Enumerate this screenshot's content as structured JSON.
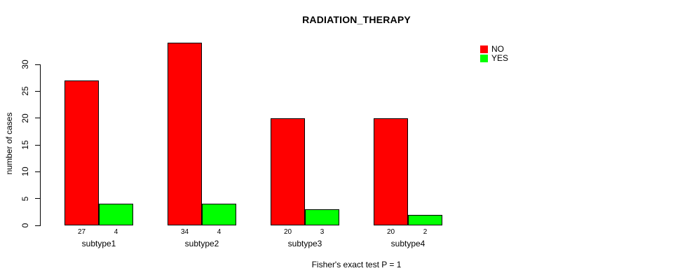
{
  "title": "RADIATION_THERAPY",
  "footer": "Fisher's exact test P = 1",
  "ylabel": "number of cases",
  "colors": {
    "no": "#FF0000",
    "yes": "#00FF00",
    "axis": "#000000",
    "background": "#FFFFFF"
  },
  "legend": {
    "position": "top-right",
    "entries": [
      {
        "label": "NO",
        "color": "#FF0000"
      },
      {
        "label": "YES",
        "color": "#00FF00"
      }
    ]
  },
  "chart_data": {
    "type": "bar",
    "title": "RADIATION_THERAPY",
    "xlabel": "",
    "ylabel": "number of cases",
    "categories": [
      "subtype1",
      "subtype2",
      "subtype3",
      "subtype4"
    ],
    "series": [
      {
        "name": "NO",
        "color": "#FF0000",
        "values": [
          27,
          34,
          20,
          20
        ]
      },
      {
        "name": "YES",
        "color": "#00FF00",
        "values": [
          4,
          4,
          3,
          2
        ]
      }
    ],
    "bar_value_labels": [
      [
        27,
        4
      ],
      [
        34,
        4
      ],
      [
        20,
        3
      ],
      [
        20,
        2
      ]
    ],
    "ylim": [
      0,
      34.8
    ],
    "yticks": [
      0,
      5,
      10,
      15,
      20,
      25,
      30
    ],
    "grid": false,
    "legend_position": "top-right",
    "annotation": "Fisher's exact test P = 1"
  }
}
